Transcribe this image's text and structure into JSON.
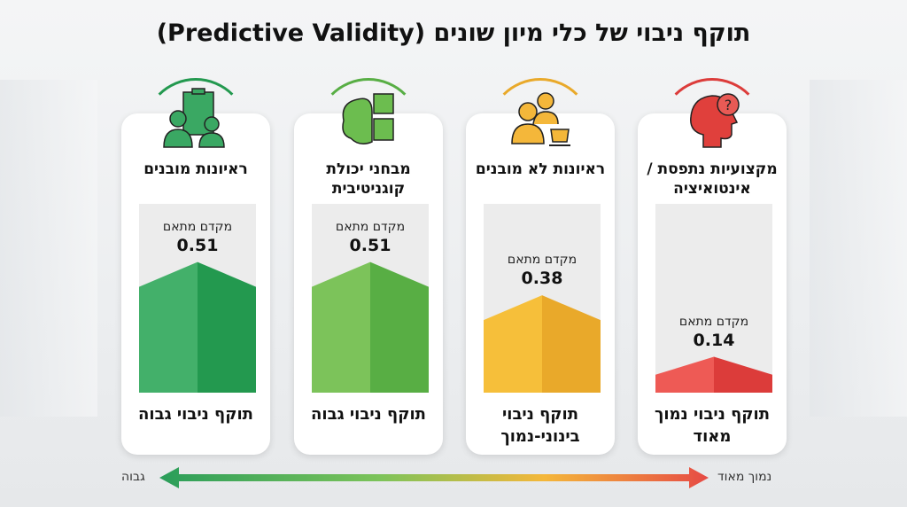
{
  "title": "תוקף ניבוי של כלי מיון שונים (Predictive Validity)",
  "chart_data": {
    "type": "bar",
    "title": "תוקף ניבוי של כלי מיון שונים (Predictive Validity)",
    "categories": [
      "מקצועיות נתפסת / אינטואיציה",
      "ראיונות לא מובנים",
      "מבחני יכולת קוגניטיבית",
      "ראיונות מובנים"
    ],
    "value_label": "מקדם מתאם",
    "values": [
      0.14,
      0.38,
      0.51,
      0.51
    ],
    "value_texts": [
      "0.14",
      "0.38",
      "0.51",
      "0.51"
    ],
    "validity_labels": [
      "תוקף ניבוי נמוך מאוד",
      "תוקף ניבוי בינוני-נמוך",
      "תוקף ניבוי גבוה",
      "תוקף ניבוי גבוה"
    ],
    "colors": [
      [
        "#ee5a55",
        "#dc3c3a"
      ],
      [
        "#f6bf3a",
        "#e9a92a"
      ],
      [
        "#7cc35a",
        "#58ae44"
      ],
      [
        "#43b06a",
        "#23994f"
      ]
    ],
    "icons": [
      "head-question-icon",
      "people-coffee-icon",
      "brain-puzzle-icon",
      "interview-clipboard-icon"
    ],
    "ylim": [
      0,
      0.7
    ],
    "axis": {
      "low": "נמוך מאוד",
      "high": "גבוה"
    }
  }
}
